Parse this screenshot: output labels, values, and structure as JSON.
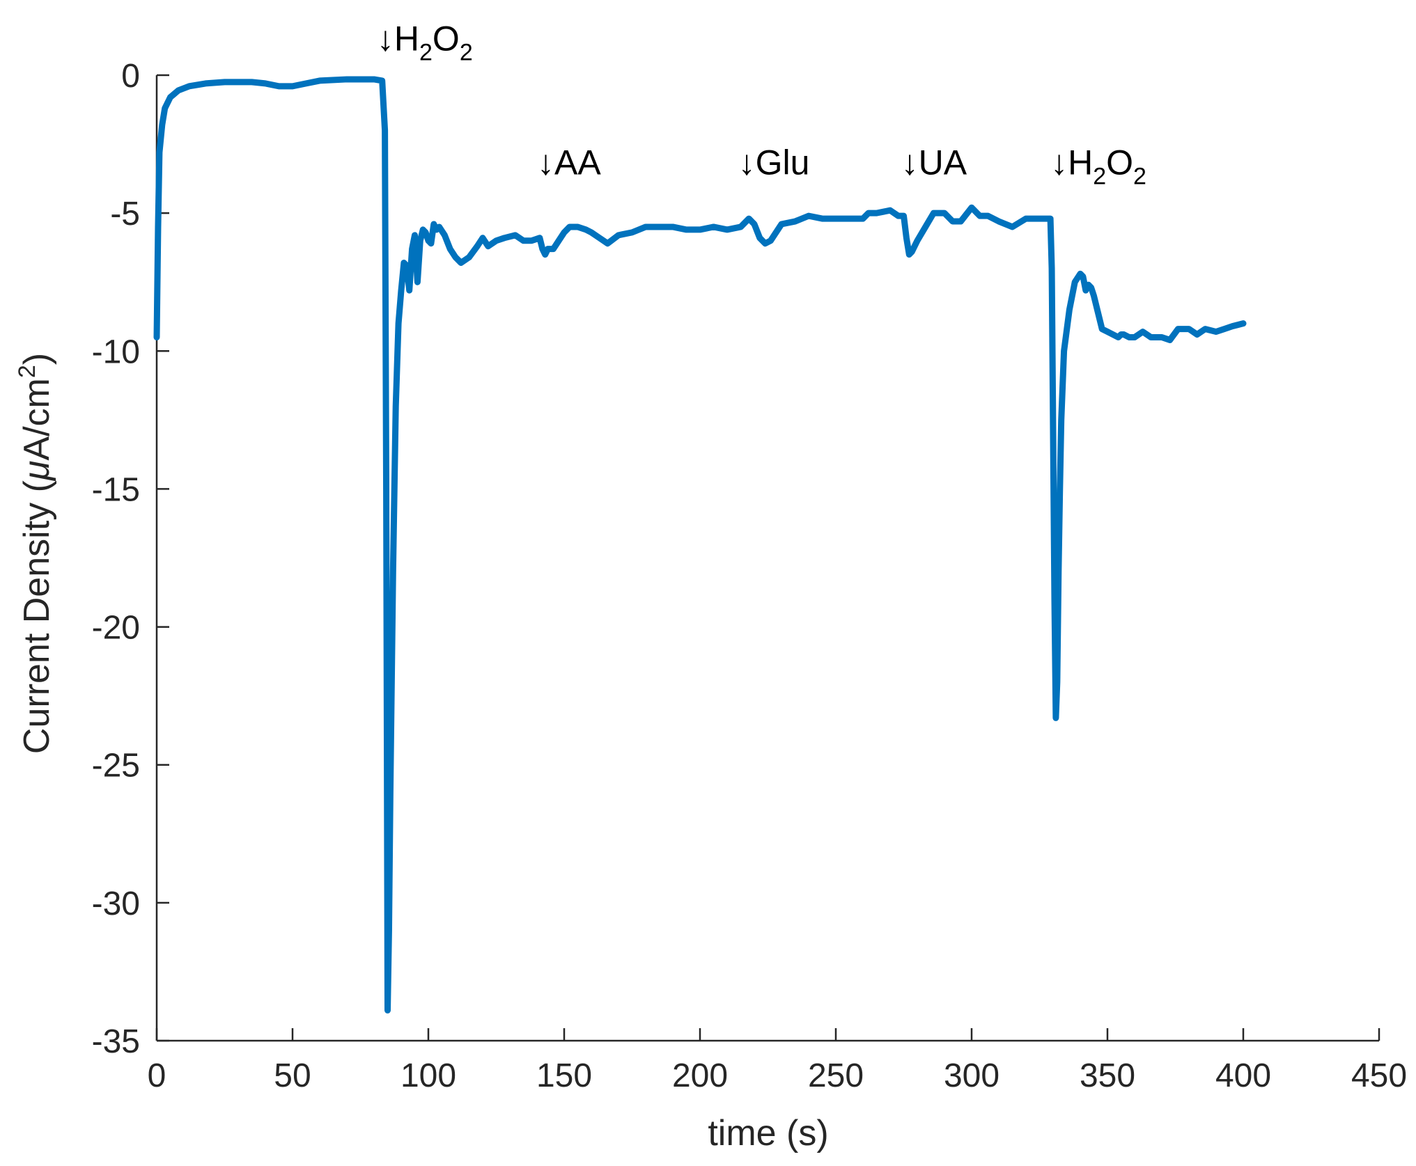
{
  "chart_data": {
    "type": "line",
    "xlabel": "time (s)",
    "ylabel_main": "Current Density (",
    "ylabel_mu": "μ",
    "ylabel_unit": "A/cm",
    "ylabel_sup": "2",
    "ylabel_close": ")",
    "xlim": [
      0,
      450
    ],
    "ylim": [
      -35,
      0
    ],
    "xticks": [
      0,
      50,
      100,
      150,
      200,
      250,
      300,
      350,
      400,
      450
    ],
    "yticks": [
      0,
      -5,
      -10,
      -15,
      -20,
      -25,
      -30,
      -35
    ],
    "grid": false,
    "color": "#0072BD",
    "annotations": [
      {
        "arrow": "↓",
        "label": "H",
        "sub": "2",
        "label2": "O",
        "sub2": "2",
        "x": 81,
        "y": 0.9
      },
      {
        "arrow": "↓",
        "label": "AA",
        "x": 140,
        "y": -3.6
      },
      {
        "arrow": "↓",
        "label": "Glu",
        "x": 214,
        "y": -3.6
      },
      {
        "arrow": "↓",
        "label": "UA",
        "x": 274,
        "y": -3.6
      },
      {
        "arrow": "↓",
        "label": "H",
        "sub": "2",
        "label2": "O",
        "sub2": "2",
        "x": 329,
        "y": -3.6
      }
    ],
    "series": [
      {
        "x": [
          0,
          0.5,
          1,
          2,
          3,
          5,
          8,
          12,
          18,
          25,
          35,
          40,
          45,
          50,
          55,
          60,
          70,
          80,
          83,
          84,
          84.5,
          85,
          85.5,
          86,
          87,
          88,
          89,
          90,
          91,
          92,
          93,
          94,
          95,
          96,
          97,
          98,
          99,
          100,
          101,
          102,
          103,
          104,
          106,
          108,
          110,
          112,
          115,
          118,
          120,
          122,
          125,
          128,
          132,
          135,
          138,
          141,
          142,
          143,
          144,
          146,
          148,
          150,
          152,
          155,
          158,
          160,
          163,
          166,
          170,
          175,
          180,
          185,
          190,
          195,
          200,
          205,
          210,
          215,
          218,
          220,
          222,
          224,
          226,
          228,
          230,
          235,
          240,
          245,
          250,
          255,
          260,
          262,
          265,
          270,
          273,
          275,
          276,
          277,
          278,
          280,
          283,
          286,
          290,
          293,
          296,
          300,
          303,
          306,
          310,
          315,
          320,
          325,
          329,
          329.5,
          330,
          330.5,
          331,
          331.5,
          332,
          332.5,
          333,
          334,
          336,
          338,
          340,
          341,
          342,
          343,
          344,
          345,
          347,
          348,
          350,
          352,
          354,
          355,
          356,
          358,
          360,
          363,
          366,
          370,
          373,
          376,
          380,
          383,
          386,
          390,
          393,
          396,
          400
        ],
        "y": [
          -9.5,
          -5.5,
          -2.8,
          -1.8,
          -1.2,
          -0.8,
          -0.55,
          -0.4,
          -0.3,
          -0.25,
          -0.25,
          -0.3,
          -0.4,
          -0.4,
          -0.3,
          -0.2,
          -0.15,
          -0.15,
          -0.2,
          -2.0,
          -15.0,
          -33.9,
          -31.0,
          -26.0,
          -18.0,
          -12.0,
          -9.0,
          -7.8,
          -6.8,
          -6.9,
          -7.8,
          -6.3,
          -5.8,
          -7.5,
          -6.0,
          -5.6,
          -5.7,
          -6.0,
          -6.1,
          -5.4,
          -5.6,
          -5.5,
          -5.8,
          -6.3,
          -6.6,
          -6.8,
          -6.6,
          -6.2,
          -5.9,
          -6.2,
          -6.0,
          -5.9,
          -5.8,
          -6.0,
          -6.0,
          -5.9,
          -6.3,
          -6.5,
          -6.3,
          -6.3,
          -6.0,
          -5.7,
          -5.5,
          -5.5,
          -5.6,
          -5.7,
          -5.9,
          -6.1,
          -5.8,
          -5.7,
          -5.5,
          -5.5,
          -5.5,
          -5.6,
          -5.6,
          -5.5,
          -5.6,
          -5.5,
          -5.2,
          -5.4,
          -5.9,
          -6.1,
          -6.0,
          -5.7,
          -5.4,
          -5.3,
          -5.1,
          -5.2,
          -5.2,
          -5.2,
          -5.2,
          -5.0,
          -5.0,
          -4.9,
          -5.1,
          -5.1,
          -5.9,
          -6.5,
          -6.4,
          -6.0,
          -5.5,
          -5.0,
          -5.0,
          -5.3,
          -5.3,
          -4.8,
          -5.1,
          -5.1,
          -5.3,
          -5.5,
          -5.2,
          -5.2,
          -5.2,
          -7.0,
          -13.0,
          -19.0,
          -23.3,
          -22.0,
          -18.0,
          -15.0,
          -12.5,
          -10.0,
          -8.5,
          -7.5,
          -7.2,
          -7.3,
          -7.8,
          -7.6,
          -7.7,
          -8.0,
          -8.8,
          -9.2,
          -9.3,
          -9.4,
          -9.5,
          -9.4,
          -9.4,
          -9.5,
          -9.5,
          -9.3,
          -9.5,
          -9.5,
          -9.6,
          -9.2,
          -9.2,
          -9.4,
          -9.2,
          -9.3,
          -9.2,
          -9.1,
          -9.0
        ]
      }
    ]
  }
}
